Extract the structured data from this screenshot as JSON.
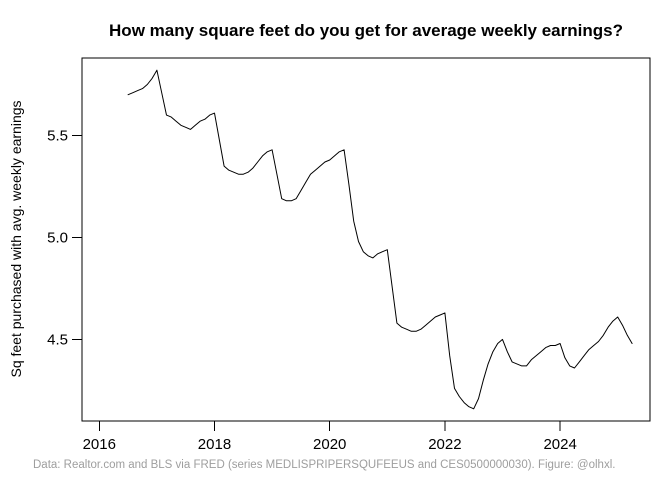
{
  "figure": {
    "title": "How many square feet do you get for average weekly earnings?",
    "caption": "Data: Realtor.com and BLS via FRED (series MEDLISPRIPERSQUFEEUS and CES0500000030). Figure: @olhxl."
  },
  "colors": {
    "line": "#000000",
    "axis": "#000000",
    "caption_text": "#9e9e9e",
    "background": "#ffffff"
  },
  "chart_data": {
    "type": "line",
    "title": "How many square feet do you get for average weekly earnings?",
    "xlabel": "",
    "ylabel": "Sq feet purchased with avg. weekly earnings",
    "grid": false,
    "legend": "none",
    "xlim": [
      2015.7,
      2025.56
    ],
    "ylim": [
      4.1,
      5.88
    ],
    "x_tick_values": [
      2016,
      2018,
      2020,
      2022,
      2024
    ],
    "x_tick_labels": [
      "2016",
      "2018",
      "2020",
      "2022",
      "2024"
    ],
    "y_tick_values": [
      4.5,
      5.0,
      5.5
    ],
    "y_tick_labels": [
      "4.5",
      "5.0",
      "5.5"
    ],
    "series_name": "sq-feet-purchased-with-avg-weekly-earnings",
    "months": [
      "2016-07",
      "2016-08",
      "2016-09",
      "2016-10",
      "2016-11",
      "2016-12",
      "2017-01",
      "2017-02",
      "2017-03",
      "2017-04",
      "2017-05",
      "2017-06",
      "2017-07",
      "2017-08",
      "2017-09",
      "2017-10",
      "2017-11",
      "2017-12",
      "2018-01",
      "2018-02",
      "2018-03",
      "2018-04",
      "2018-05",
      "2018-06",
      "2018-07",
      "2018-08",
      "2018-09",
      "2018-10",
      "2018-11",
      "2018-12",
      "2019-01",
      "2019-02",
      "2019-03",
      "2019-04",
      "2019-05",
      "2019-06",
      "2019-07",
      "2019-08",
      "2019-09",
      "2019-10",
      "2019-11",
      "2019-12",
      "2020-01",
      "2020-02",
      "2020-03",
      "2020-04",
      "2020-05",
      "2020-06",
      "2020-07",
      "2020-08",
      "2020-09",
      "2020-10",
      "2020-11",
      "2020-12",
      "2021-01",
      "2021-02",
      "2021-03",
      "2021-04",
      "2021-05",
      "2021-06",
      "2021-07",
      "2021-08",
      "2021-09",
      "2021-10",
      "2021-11",
      "2021-12",
      "2022-01",
      "2022-02",
      "2022-03",
      "2022-04",
      "2022-05",
      "2022-06",
      "2022-07",
      "2022-08",
      "2022-09",
      "2022-10",
      "2022-11",
      "2022-12",
      "2023-01",
      "2023-02",
      "2023-03",
      "2023-04",
      "2023-05",
      "2023-06",
      "2023-07",
      "2023-08",
      "2023-09",
      "2023-10",
      "2023-11",
      "2023-12",
      "2024-01",
      "2024-02",
      "2024-03",
      "2024-04",
      "2024-05",
      "2024-06",
      "2024-07",
      "2024-08",
      "2024-09",
      "2024-10",
      "2024-11",
      "2024-12",
      "2025-01",
      "2025-02",
      "2025-03",
      "2025-04"
    ],
    "values": [
      5.7,
      5.71,
      5.72,
      5.73,
      5.75,
      5.78,
      5.82,
      5.71,
      5.6,
      5.59,
      5.57,
      5.55,
      5.54,
      5.53,
      5.55,
      5.57,
      5.58,
      5.6,
      5.61,
      5.48,
      5.35,
      5.33,
      5.32,
      5.31,
      5.31,
      5.32,
      5.34,
      5.37,
      5.4,
      5.42,
      5.43,
      5.31,
      5.19,
      5.18,
      5.18,
      5.19,
      5.23,
      5.27,
      5.31,
      5.33,
      5.35,
      5.37,
      5.38,
      5.4,
      5.42,
      5.43,
      5.26,
      5.08,
      4.98,
      4.93,
      4.91,
      4.9,
      4.92,
      4.93,
      4.94,
      4.76,
      4.58,
      4.56,
      4.55,
      4.54,
      4.54,
      4.55,
      4.57,
      4.59,
      4.61,
      4.62,
      4.63,
      4.42,
      4.26,
      4.22,
      4.19,
      4.17,
      4.16,
      4.21,
      4.3,
      4.38,
      4.44,
      4.48,
      4.5,
      4.44,
      4.39,
      4.38,
      4.37,
      4.37,
      4.4,
      4.42,
      4.44,
      4.46,
      4.47,
      4.47,
      4.48,
      4.41,
      4.37,
      4.36,
      4.39,
      4.42,
      4.45,
      4.47,
      4.49,
      4.52,
      4.56,
      4.59,
      4.61,
      4.57,
      4.52,
      4.48
    ]
  }
}
